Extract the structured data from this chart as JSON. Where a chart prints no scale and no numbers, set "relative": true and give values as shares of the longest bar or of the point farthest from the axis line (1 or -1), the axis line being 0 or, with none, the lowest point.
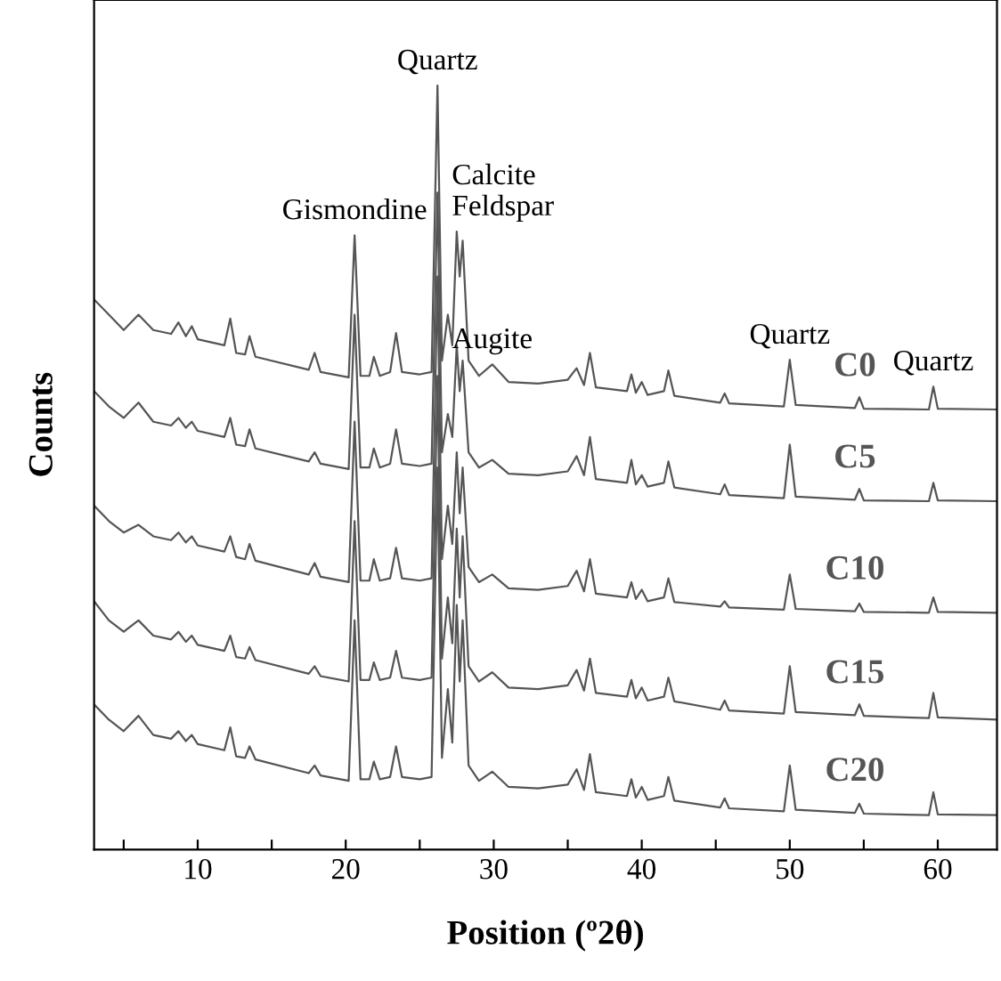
{
  "chart_data": {
    "type": "line",
    "relative": true,
    "xlabel": "Position (º2θ)",
    "ylabel": "Counts",
    "xlim": [
      3,
      64
    ],
    "xticks": [
      {
        "value": 5,
        "label": null
      },
      10,
      {
        "value": 15,
        "label": null
      },
      20,
      {
        "value": 25,
        "label": null
      },
      30,
      {
        "value": 35,
        "label": null
      },
      40,
      {
        "value": 45,
        "label": null
      },
      50,
      {
        "value": 55,
        "label": null
      },
      60
    ],
    "tick_labels": "x",
    "grid": false,
    "marker": "none",
    "line_style": "solid",
    "x": [
      3,
      4,
      5,
      6,
      7,
      8.2,
      8.7,
      9.2,
      9.6,
      10,
      11.8,
      12.2,
      12.6,
      13.2,
      13.5,
      13.9,
      17.5,
      17.9,
      18.3,
      20.2,
      20.6,
      21,
      21.6,
      21.9,
      22.3,
      23,
      23.4,
      23.8,
      25,
      25.8,
      26.2,
      26.5,
      26.9,
      27.2,
      27.5,
      27.7,
      27.9,
      28.3,
      29,
      29.9,
      31,
      33,
      35,
      35.6,
      36.1,
      36.5,
      36.9,
      39,
      39.3,
      39.6,
      40,
      40.4,
      41.5,
      41.8,
      42.2,
      45.3,
      45.6,
      45.9,
      49.6,
      50,
      50.4,
      54.4,
      54.7,
      55,
      59.4,
      59.7,
      60,
      64
    ],
    "series": [
      {
        "name": "C0",
        "color": "#555555",
        "values": [
          0.72,
          0.7,
          0.68,
          0.7,
          0.68,
          0.675,
          0.69,
          0.672,
          0.685,
          0.668,
          0.66,
          0.695,
          0.65,
          0.648,
          0.672,
          0.645,
          0.628,
          0.65,
          0.625,
          0.618,
          0.804,
          0.62,
          0.62,
          0.645,
          0.62,
          0.625,
          0.676,
          0.625,
          0.622,
          0.625,
          1.0,
          0.64,
          0.7,
          0.66,
          0.809,
          0.75,
          0.797,
          0.64,
          0.62,
          0.635,
          0.612,
          0.61,
          0.615,
          0.63,
          0.608,
          0.65,
          0.605,
          0.6,
          0.622,
          0.598,
          0.612,
          0.595,
          0.6,
          0.627,
          0.594,
          0.585,
          0.597,
          0.584,
          0.58,
          0.641,
          0.582,
          0.578,
          0.592,
          0.577,
          0.576,
          0.606,
          0.577,
          0.576
        ]
      },
      {
        "name": "C5",
        "color": "#555555",
        "values": [
          0.6,
          0.58,
          0.565,
          0.585,
          0.56,
          0.555,
          0.565,
          0.552,
          0.56,
          0.548,
          0.54,
          0.565,
          0.53,
          0.528,
          0.55,
          0.525,
          0.508,
          0.52,
          0.505,
          0.498,
          0.7,
          0.5,
          0.5,
          0.525,
          0.5,
          0.505,
          0.55,
          0.505,
          0.502,
          0.505,
          0.86,
          0.52,
          0.57,
          0.54,
          0.66,
          0.6,
          0.64,
          0.52,
          0.5,
          0.51,
          0.492,
          0.49,
          0.495,
          0.515,
          0.49,
          0.54,
          0.485,
          0.48,
          0.51,
          0.478,
          0.49,
          0.475,
          0.48,
          0.508,
          0.474,
          0.465,
          0.478,
          0.464,
          0.46,
          0.53,
          0.462,
          0.458,
          0.472,
          0.457,
          0.456,
          0.48,
          0.457,
          0.456
        ]
      },
      {
        "name": "C10",
        "color": "#555555",
        "values": [
          0.45,
          0.43,
          0.415,
          0.425,
          0.41,
          0.405,
          0.415,
          0.402,
          0.41,
          0.398,
          0.39,
          0.41,
          0.383,
          0.38,
          0.4,
          0.378,
          0.36,
          0.375,
          0.357,
          0.35,
          0.56,
          0.352,
          0.352,
          0.38,
          0.352,
          0.355,
          0.395,
          0.355,
          0.352,
          0.355,
          0.75,
          0.38,
          0.45,
          0.4,
          0.52,
          0.44,
          0.5,
          0.37,
          0.35,
          0.36,
          0.342,
          0.34,
          0.345,
          0.365,
          0.338,
          0.38,
          0.335,
          0.33,
          0.35,
          0.328,
          0.34,
          0.325,
          0.33,
          0.355,
          0.324,
          0.318,
          0.325,
          0.317,
          0.314,
          0.36,
          0.315,
          0.312,
          0.322,
          0.311,
          0.31,
          0.33,
          0.311,
          0.31
        ]
      },
      {
        "name": "C15",
        "color": "#555555",
        "values": [
          0.325,
          0.3,
          0.285,
          0.3,
          0.28,
          0.275,
          0.285,
          0.272,
          0.28,
          0.268,
          0.26,
          0.28,
          0.252,
          0.25,
          0.265,
          0.248,
          0.23,
          0.24,
          0.227,
          0.22,
          0.43,
          0.222,
          0.222,
          0.245,
          0.222,
          0.225,
          0.26,
          0.225,
          0.222,
          0.225,
          0.62,
          0.25,
          0.33,
          0.27,
          0.42,
          0.33,
          0.41,
          0.24,
          0.22,
          0.232,
          0.212,
          0.21,
          0.215,
          0.235,
          0.208,
          0.25,
          0.205,
          0.2,
          0.222,
          0.198,
          0.212,
          0.195,
          0.2,
          0.225,
          0.194,
          0.183,
          0.195,
          0.182,
          0.178,
          0.24,
          0.18,
          0.176,
          0.19,
          0.175,
          0.172,
          0.205,
          0.173,
          0.17
        ]
      },
      {
        "name": "C20",
        "color": "#555555",
        "values": [
          0.19,
          0.17,
          0.155,
          0.175,
          0.15,
          0.145,
          0.155,
          0.142,
          0.15,
          0.138,
          0.13,
          0.16,
          0.122,
          0.12,
          0.135,
          0.118,
          0.1,
          0.11,
          0.097,
          0.09,
          0.3,
          0.092,
          0.092,
          0.115,
          0.092,
          0.095,
          0.135,
          0.095,
          0.092,
          0.095,
          0.5,
          0.12,
          0.21,
          0.14,
          0.32,
          0.22,
          0.3,
          0.11,
          0.09,
          0.102,
          0.082,
          0.08,
          0.085,
          0.105,
          0.078,
          0.125,
          0.075,
          0.07,
          0.092,
          0.068,
          0.082,
          0.065,
          0.07,
          0.095,
          0.064,
          0.055,
          0.067,
          0.054,
          0.05,
          0.11,
          0.052,
          0.048,
          0.06,
          0.047,
          0.045,
          0.075,
          0.046,
          0.045
        ]
      }
    ],
    "annotations": [
      {
        "text": "Quartz",
        "x": 26.2,
        "y": 1.0
      },
      {
        "text": "Gismondine",
        "x": 20.6,
        "y": 0.804
      },
      {
        "text": "Calcite\nFeldspar",
        "x": 27.5,
        "y": 0.809
      },
      {
        "text": "Augite",
        "x": 29.9,
        "y": 0.635
      },
      {
        "text": "Quartz",
        "x": 50,
        "y": 0.641
      },
      {
        "text": "Quartz",
        "x": 59.7,
        "y": 0.606
      }
    ]
  }
}
